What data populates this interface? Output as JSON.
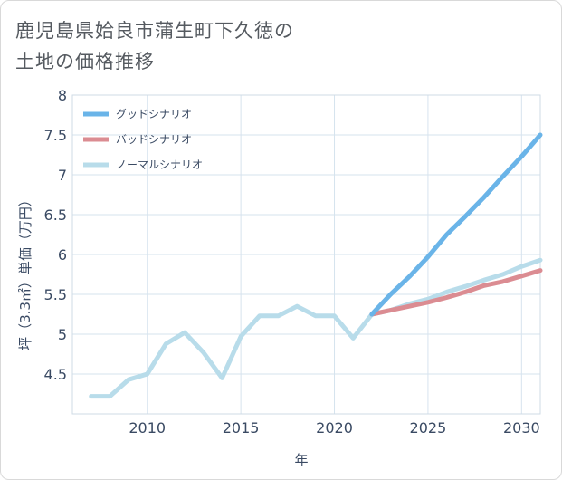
{
  "chart_data": {
    "type": "line",
    "title_lines": [
      "鹿児島県姶良市蒲生町下久徳の",
      "土地の価格推移"
    ],
    "xlabel": "年",
    "ylabel": "坪（3.3㎡）単価（万円）",
    "xlim": [
      2006,
      2031
    ],
    "ylim": [
      4,
      8
    ],
    "x_ticks": [
      2010,
      2015,
      2020,
      2025,
      2030
    ],
    "y_ticks": [
      4.5,
      5,
      5.5,
      6,
      6.5,
      7,
      7.5,
      8
    ],
    "y_tick_labels": [
      "4.5",
      "5",
      "5.5",
      "6",
      "6.5",
      "7",
      "7.5",
      "8"
    ],
    "series": [
      {
        "name": "グッドシナリオ",
        "color": "#6ab4e8",
        "x": [
          2022,
          2023,
          2024,
          2025,
          2026,
          2027,
          2028,
          2029,
          2030,
          2031
        ],
        "values": [
          5.25,
          5.5,
          5.72,
          5.97,
          6.25,
          6.48,
          6.72,
          6.98,
          7.23,
          7.5
        ]
      },
      {
        "name": "バッドシナリオ",
        "color": "#db8c92",
        "x": [
          2022,
          2023,
          2024,
          2025,
          2026,
          2027,
          2028,
          2029,
          2030,
          2031
        ],
        "values": [
          5.25,
          5.3,
          5.35,
          5.4,
          5.46,
          5.53,
          5.61,
          5.66,
          5.73,
          5.8
        ]
      },
      {
        "name": "ノーマルシナリオ",
        "color": "#b8dcea",
        "x": [
          2007,
          2008,
          2009,
          2010,
          2011,
          2012,
          2013,
          2014,
          2015,
          2016,
          2017,
          2018,
          2019,
          2020,
          2021,
          2022,
          2023,
          2024,
          2025,
          2026,
          2027,
          2028,
          2029,
          2030,
          2031
        ],
        "values": [
          4.22,
          4.22,
          4.43,
          4.5,
          4.88,
          5.02,
          4.77,
          4.45,
          4.97,
          5.23,
          5.23,
          5.35,
          5.23,
          5.23,
          4.95,
          5.25,
          5.3,
          5.38,
          5.44,
          5.53,
          5.6,
          5.68,
          5.75,
          5.85,
          5.93
        ]
      }
    ]
  }
}
